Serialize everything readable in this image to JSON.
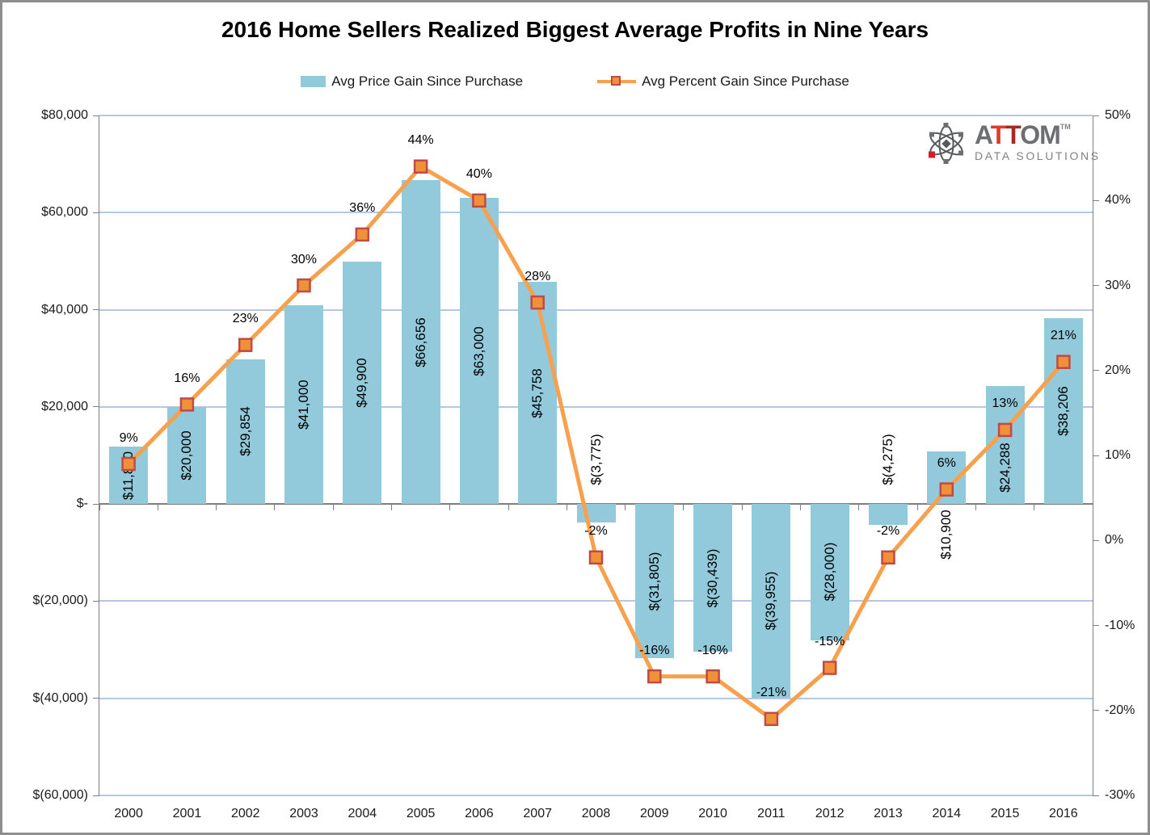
{
  "title": "2016 Home Sellers Realized Biggest Average Profits in Nine Years",
  "legend": [
    {
      "label": "Avg Price Gain Since Purchase",
      "type": "bar",
      "color": "#92CADC"
    },
    {
      "label": "Avg Percent Gain Since Purchase",
      "type": "line",
      "color": "#F7A04E"
    }
  ],
  "logo": {
    "brand": [
      {
        "text": "A",
        "color": "#6D6E71"
      },
      {
        "text": "T",
        "color": "#DF3B2B"
      },
      {
        "text": "T",
        "color": "#A52A21"
      },
      {
        "text": "OM",
        "color": "#6D6E71"
      }
    ],
    "tm": "TM",
    "subtitle": "DATA SOLUTIONS"
  },
  "colors": {
    "bar": "#92CADC",
    "line": "#F7A04E",
    "marker_fill": "#F0913A",
    "marker_border": "#BE4B48",
    "gridline": "#B5C7E6",
    "axis_line": "#7F7F7F",
    "text": "#1A1A1A"
  },
  "chart_data": {
    "type": "bar",
    "subtype": "combo bar + line, dual axis",
    "title": "2016 Home Sellers Realized Biggest Average Profits in Nine Years",
    "categories": [
      "2000",
      "2001",
      "2002",
      "2003",
      "2004",
      "2005",
      "2006",
      "2007",
      "2008",
      "2009",
      "2010",
      "2011",
      "2012",
      "2013",
      "2014",
      "2015",
      "2016"
    ],
    "series": [
      {
        "name": "Avg Price Gain Since Purchase",
        "type": "bar",
        "axis": "left",
        "color": "#92CADC",
        "values": [
          11800,
          20000,
          29854,
          41000,
          49900,
          66656,
          63000,
          45758,
          -3775,
          -31805,
          -30439,
          -39955,
          -28000,
          -4275,
          10900,
          24288,
          38206
        ],
        "labels": [
          "$11,800",
          "$20,000",
          "$29,854",
          "$41,000",
          "$49,900",
          "$66,656",
          "$63,000",
          "$45,758",
          "$(3,775)",
          "$(31,805)",
          "$(30,439)",
          "$(39,955)",
          "$(28,000)",
          "$(4,275)",
          "$10,900",
          "$24,288",
          "$38,206"
        ],
        "label_dy": [
          0,
          0,
          0,
          0,
          0,
          0,
          0,
          0,
          0,
          0,
          0,
          0,
          0,
          0,
          0,
          28,
          0
        ]
      },
      {
        "name": "Avg Percent Gain Since Purchase",
        "type": "line",
        "axis": "right",
        "color": "#F7A04E",
        "marker": {
          "shape": "square",
          "fill": "#F0913A",
          "border": "#BE4B48"
        },
        "values": [
          9,
          16,
          23,
          30,
          36,
          44,
          40,
          28,
          -2,
          -16,
          -16,
          -21,
          -15,
          -2,
          6,
          13,
          21
        ],
        "labels": [
          "9%",
          "16%",
          "23%",
          "30%",
          "36%",
          "44%",
          "40%",
          "28%",
          "-2%",
          "-16%",
          "-16%",
          "-21%",
          "-15%",
          "-2%",
          "6%",
          "13%",
          "21%"
        ]
      }
    ],
    "left_axis": {
      "min": -60000,
      "max": 80000,
      "step": 20000,
      "ticks": [
        {
          "v": 80000,
          "label": "$80,000"
        },
        {
          "v": 60000,
          "label": "$60,000"
        },
        {
          "v": 40000,
          "label": "$40,000"
        },
        {
          "v": 20000,
          "label": "$20,000"
        },
        {
          "v": 0,
          "label": "$-"
        },
        {
          "v": -20000,
          "label": "$(20,000)"
        },
        {
          "v": -40000,
          "label": "$(40,000)"
        },
        {
          "v": -60000,
          "label": "$(60,000)"
        }
      ]
    },
    "right_axis": {
      "min": -30,
      "max": 50,
      "step": 10,
      "ticks": [
        {
          "v": 50,
          "label": "50%"
        },
        {
          "v": 40,
          "label": "40%"
        },
        {
          "v": 30,
          "label": "30%"
        },
        {
          "v": 20,
          "label": "20%"
        },
        {
          "v": 10,
          "label": "10%"
        },
        {
          "v": 0,
          "label": "0%"
        },
        {
          "v": -10,
          "label": "-10%"
        },
        {
          "v": -20,
          "label": "-20%"
        },
        {
          "v": -30,
          "label": "-30%"
        }
      ]
    },
    "gridlines": true,
    "legend_position": "top"
  }
}
